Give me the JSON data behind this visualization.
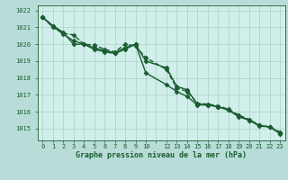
{
  "title": "Graphe pression niveau de la mer (hPa)",
  "background_color": "#b8ddd8",
  "plot_bg_color": "#d0eeea",
  "grid_color": "#b0cfc8",
  "line_color": "#1a5c30",
  "xlim": [
    -0.5,
    23.5
  ],
  "ylim": [
    1014.3,
    1022.3
  ],
  "yticks": [
    1015,
    1016,
    1017,
    1018,
    1019,
    1020,
    1021,
    1022
  ],
  "xtick_positions": [
    0,
    1,
    2,
    3,
    4,
    5,
    6,
    7,
    8,
    9,
    10,
    11,
    12,
    13,
    14,
    15,
    16,
    17,
    18,
    19,
    20,
    21,
    22,
    23
  ],
  "xtick_labels": [
    "0",
    "1",
    "2",
    "3",
    "4",
    "5",
    "6",
    "7",
    "8",
    "9",
    "10",
    "",
    "12",
    "13",
    "14",
    "15",
    "16",
    "17",
    "18",
    "19",
    "20",
    "21",
    "22",
    "23"
  ],
  "series": [
    {
      "x": [
        0,
        1,
        2,
        3,
        4,
        5,
        6,
        7,
        8,
        9,
        10,
        12,
        13,
        14,
        15,
        16,
        17,
        18,
        19,
        20,
        21,
        22,
        23
      ],
      "y": [
        1021.6,
        1021.1,
        1020.7,
        1020.0,
        1020.0,
        1019.7,
        1019.55,
        1019.45,
        1019.7,
        1020.0,
        1018.3,
        1017.6,
        1017.2,
        1016.9,
        1016.4,
        1016.4,
        1016.3,
        1016.1,
        1015.7,
        1015.5,
        1015.2,
        1015.1,
        1014.7
      ],
      "marker": "D",
      "markersize": 2.5,
      "linewidth": 1.0,
      "linestyle": "-"
    },
    {
      "x": [
        0,
        1,
        2,
        3,
        4,
        5,
        6,
        7,
        8,
        9,
        10,
        12,
        13,
        14,
        15,
        16,
        17,
        18,
        19,
        20,
        21,
        22,
        23
      ],
      "y": [
        1021.6,
        1021.0,
        1020.65,
        1020.55,
        1020.0,
        1019.95,
        1019.7,
        1019.55,
        1020.0,
        1019.9,
        1019.2,
        1018.5,
        1017.4,
        1017.2,
        1016.5,
        1016.45,
        1016.35,
        1016.15,
        1015.8,
        1015.55,
        1015.2,
        1015.1,
        1014.8
      ],
      "marker": "D",
      "markersize": 2.5,
      "linewidth": 1.0,
      "linestyle": "--"
    },
    {
      "x": [
        0,
        1,
        2,
        3,
        4,
        5,
        6,
        7,
        8,
        9,
        10,
        12,
        13,
        14,
        15,
        16,
        17,
        18,
        19,
        20,
        21,
        22,
        23
      ],
      "y": [
        1021.6,
        1021.05,
        1020.6,
        1020.2,
        1020.0,
        1019.8,
        1019.6,
        1019.5,
        1019.8,
        1020.0,
        1019.0,
        1018.6,
        1017.5,
        1017.3,
        1016.45,
        1016.4,
        1016.3,
        1016.1,
        1015.75,
        1015.5,
        1015.15,
        1015.1,
        1014.75
      ],
      "marker": "D",
      "markersize": 2.5,
      "linewidth": 1.0,
      "linestyle": "-"
    }
  ],
  "ylabel_fontsize": 5.5,
  "xlabel_fontsize": 6.0,
  "tick_fontsize": 5.0
}
